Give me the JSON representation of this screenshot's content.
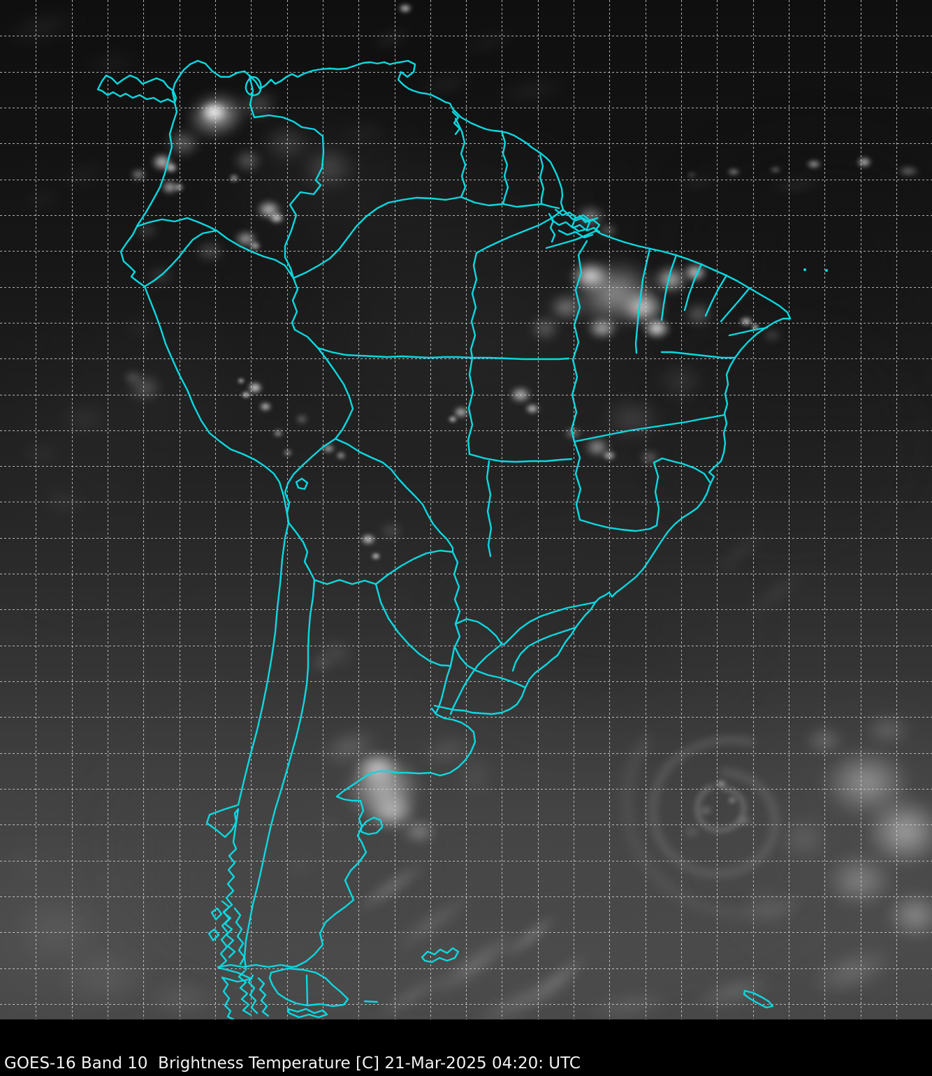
{
  "caption": {
    "text": "GOES-16 Band 10  Brightness Temperature [C] 21-Mar-2025 04:20: UTC",
    "satellite": "GOES-16",
    "band": "Band 10",
    "product": "Brightness Temperature",
    "units": "[C]",
    "datetime": "21-Mar-2025 04:20: UTC"
  },
  "overlay": {
    "grid_style": "dashed latitude-longitude grid",
    "boundary_style": "country and state boundaries",
    "depicted_region": "South America"
  },
  "colors": {
    "boundary_cyan": "#0cd8e0",
    "grid_line": "#d8d8d8",
    "caption_text": "#f2f2f2",
    "background": "#000000"
  }
}
